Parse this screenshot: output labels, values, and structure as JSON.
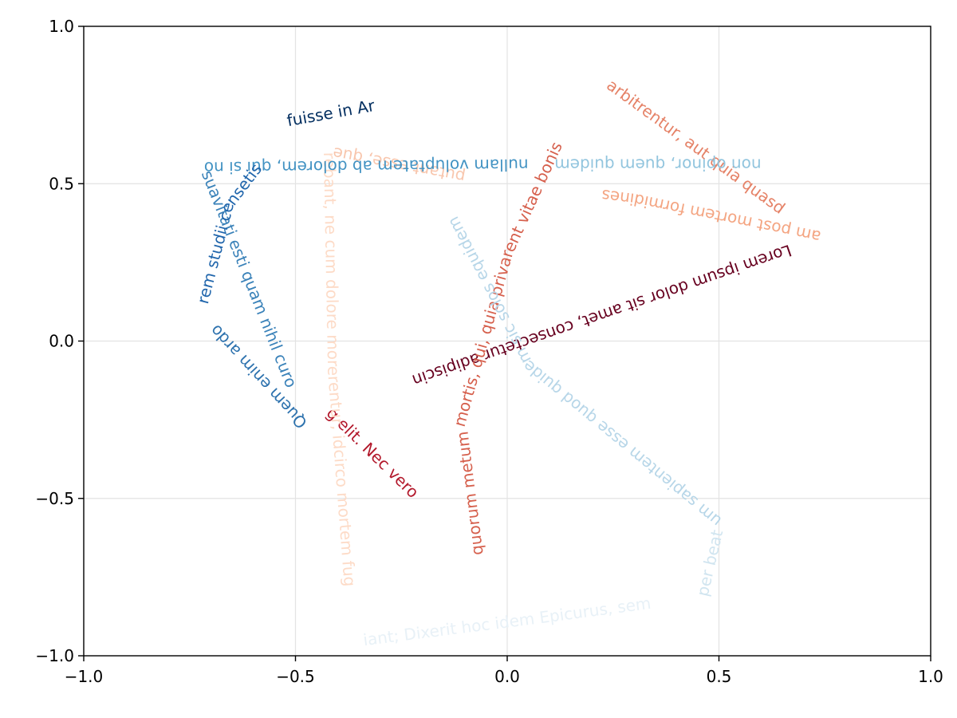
{
  "chart_data": {
    "type": "text-path",
    "title": "",
    "xlabel": "",
    "ylabel": "",
    "xlim": [
      -1.0,
      1.0
    ],
    "ylim": [
      -1.0,
      1.0
    ],
    "grid": true,
    "legend": "none",
    "x_ticks": [
      {
        "value": -1.0,
        "label": "−1.0"
      },
      {
        "value": -0.5,
        "label": "−0.5"
      },
      {
        "value": 0.0,
        "label": "0.0"
      },
      {
        "value": 0.5,
        "label": "0.5"
      },
      {
        "value": 1.0,
        "label": "1.0"
      }
    ],
    "y_ticks": [
      {
        "value": -1.0,
        "label": "−1.0"
      },
      {
        "value": -0.5,
        "label": "−0.5"
      },
      {
        "value": 0.0,
        "label": "0.0"
      },
      {
        "value": 0.5,
        "label": "0.5"
      },
      {
        "value": 1.0,
        "label": "1.0"
      }
    ],
    "text_paths": [
      {
        "text": "Lorem ipsum dolor sit amet, consectetur adipiscin",
        "color": "#67001f",
        "points": [
          [
            0.67,
            0.29
          ],
          [
            -0.42,
            -0.22
          ]
        ]
      },
      {
        "text": "g elit. Nec vero ",
        "color": "#b2182b",
        "points": [
          [
            -0.42,
            -0.22
          ],
          [
            -0.07,
            -0.68
          ]
        ]
      },
      {
        "text": "quorum metum mortis, qui, quia privarent vitae bonis",
        "color": "#d6604d",
        "points": [
          [
            -0.07,
            -0.68
          ],
          [
            -0.11,
            -0.25
          ],
          [
            0.0,
            0.28
          ],
          [
            0.2,
            0.87
          ]
        ]
      },
      {
        "text": "arbitrentur, aut quia quasd",
        "color": "#e58267",
        "points": [
          [
            0.24,
            0.82
          ],
          [
            0.74,
            0.33
          ]
        ]
      },
      {
        "text": "am post mortem formidines",
        "color": "#f4a582",
        "points": [
          [
            0.74,
            0.33
          ],
          [
            0.3,
            0.45
          ],
          [
            -0.1,
            0.52
          ]
        ]
      },
      {
        "text": "putant esse, quem quis me",
        "color": "#f8c6ad",
        "points": [
          [
            -0.1,
            0.52
          ],
          [
            -0.42,
            0.6
          ]
        ]
      },
      {
        "text": "rebant, ne cum dolore morerentur, idcirco mortem fug",
        "color": "#fddbc7",
        "points": [
          [
            -0.42,
            0.6
          ],
          [
            -0.41,
            -0.1
          ],
          [
            -0.36,
            -0.98
          ]
        ]
      },
      {
        "text": "iant; Dixerit hoc idem Epicurus, sem",
        "color": "#e8f1f7",
        "points": [
          [
            -0.34,
            -0.95
          ],
          [
            0.07,
            -0.88
          ],
          [
            0.46,
            -0.81
          ]
        ]
      },
      {
        "text": "per beat",
        "color": "#d1e5f0",
        "points": [
          [
            0.46,
            -0.81
          ],
          [
            0.5,
            -0.58
          ]
        ]
      },
      {
        "text": "um sapientem esse quod quidem sic solos equidem",
        "color": "#b7d6e8",
        "points": [
          [
            0.5,
            -0.58
          ],
          [
            0.05,
            -0.08
          ],
          [
            -0.18,
            0.52
          ]
        ]
      },
      {
        "text": "non opinor, quem quidem",
        "color": "#92c5de",
        "points": [
          [
            0.6,
            0.56
          ],
          [
            0.05,
            0.56
          ]
        ]
      },
      {
        "text": "nullam voluptatem ab dolorem, qui si non in",
        "color": "#4393c3",
        "points": [
          [
            0.05,
            0.56
          ],
          [
            -0.72,
            0.55
          ]
        ]
      },
      {
        "text": "suavitati esti quam nihil curo",
        "color": "#3a82b9",
        "points": [
          [
            -0.71,
            0.54
          ],
          [
            -0.48,
            -0.24
          ]
        ]
      },
      {
        "text": "Quem enim ardo",
        "color": "#2d72ae",
        "points": [
          [
            -0.48,
            -0.27
          ],
          [
            -0.72,
            0.08
          ]
        ]
      },
      {
        "text": "rem studii censetis",
        "color": "#2166ac",
        "points": [
          [
            -0.72,
            0.12
          ],
          [
            -0.66,
            0.43
          ],
          [
            -0.52,
            0.68
          ]
        ]
      },
      {
        "text": "fuisse in Ar",
        "color": "#053061",
        "points": [
          [
            -0.52,
            0.7
          ],
          [
            -0.27,
            0.76
          ]
        ]
      }
    ]
  }
}
